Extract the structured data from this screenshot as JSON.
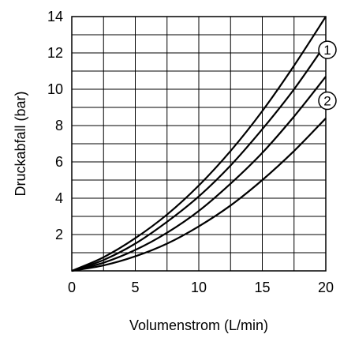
{
  "chart_data": {
    "type": "line",
    "xlabel": "Volumenstrom (L/min)",
    "ylabel": "Druckabfall (bar)",
    "xlim": [
      0,
      20
    ],
    "ylim": [
      0,
      14
    ],
    "grid": true,
    "x_ticks": [
      "0",
      "5",
      "10",
      "15",
      "20"
    ],
    "y_ticks": [
      "2",
      "4",
      "6",
      "8",
      "10",
      "12",
      "14"
    ],
    "markers": [
      {
        "label": "1",
        "series_index": 0
      },
      {
        "label": "2",
        "series_index": 2
      }
    ],
    "series": [
      {
        "x": [
          0,
          2.5,
          5,
          7.5,
          10,
          12.5,
          15,
          17.5,
          20
        ],
        "y": [
          0,
          0.75,
          1.8,
          3.1,
          4.7,
          6.6,
          8.8,
          11.3,
          14.0
        ]
      },
      {
        "x": [
          0,
          2.5,
          5,
          7.5,
          10,
          12.5,
          15,
          17.5,
          20
        ],
        "y": [
          0,
          0.6,
          1.5,
          2.7,
          4.1,
          5.8,
          7.8,
          10.0,
          12.5
        ]
      },
      {
        "x": [
          0,
          2.5,
          5,
          7.5,
          10,
          12.5,
          15,
          17.5,
          20
        ],
        "y": [
          0,
          0.45,
          1.15,
          2.1,
          3.3,
          4.8,
          6.5,
          8.5,
          10.7
        ]
      },
      {
        "x": [
          0,
          2.5,
          5,
          7.5,
          10,
          12.5,
          15,
          17.5,
          20
        ],
        "y": [
          0,
          0.3,
          0.8,
          1.5,
          2.45,
          3.6,
          5.0,
          6.6,
          8.4
        ]
      }
    ]
  }
}
